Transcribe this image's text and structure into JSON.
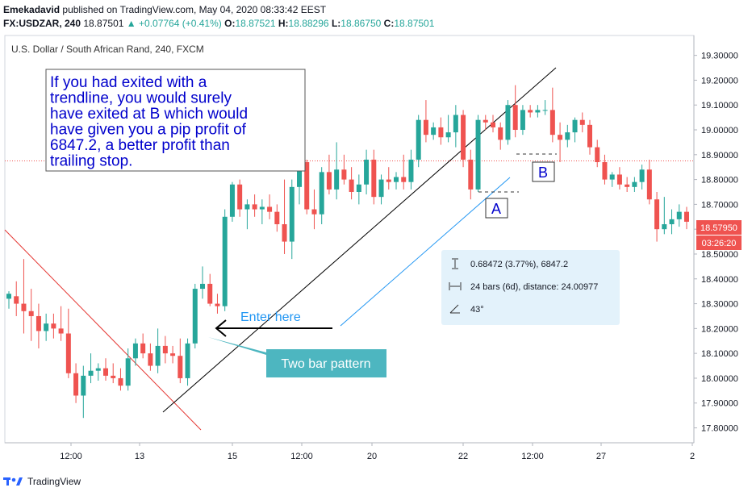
{
  "header": {
    "publisher": "Emekadavid",
    "published_text": "published on TradingView.com, May 04, 2020 08:33:42 EEST",
    "symbol": "FX:USDZAR, 240",
    "last": "18.87501",
    "change": "+0.07764 (+0.41%)",
    "open_label": "O:",
    "open": "18.87521",
    "high_label": "H:",
    "high": "18.88296",
    "low_label": "L:",
    "low": "18.86750",
    "close_label": "C:",
    "close": "18.87501"
  },
  "footer": {
    "brand": "TradingView"
  },
  "colors": {
    "up": "#26a69a",
    "down": "#ef5350",
    "annotation_text": "#0000cc",
    "info_bg": "#e3f2fb",
    "callout": "#4db6c0",
    "price_tag": "#ef5350"
  },
  "chart_data": {
    "type": "candlestick",
    "title": "U.S. Dollar / South African Rand, 240, FXCM",
    "y_axis": {
      "ticks": [
        "19.30000",
        "19.20000",
        "19.10000",
        "19.00000",
        "18.90000",
        "18.80000",
        "18.70000",
        "18.60000",
        "18.50000",
        "18.40000",
        "18.30000",
        "18.20000",
        "18.10000",
        "18.00000",
        "17.90000",
        "17.80000"
      ],
      "range": [
        17.74,
        19.38
      ]
    },
    "x_axis": {
      "ticks": [
        "12:00",
        "13",
        "15",
        "12:00",
        "20",
        "22",
        "12:00",
        "27",
        "2"
      ]
    },
    "price_tag": "18.57950",
    "countdown": "03:26:20",
    "current_price_line": 18.875,
    "candles": [
      {
        "o": 18.32,
        "h": 18.35,
        "l": 18.28,
        "c": 18.34
      },
      {
        "o": 18.33,
        "h": 18.39,
        "l": 18.25,
        "c": 18.3
      },
      {
        "o": 18.3,
        "h": 18.48,
        "l": 18.18,
        "c": 18.27
      },
      {
        "o": 18.27,
        "h": 18.36,
        "l": 18.15,
        "c": 18.25
      },
      {
        "o": 18.25,
        "h": 18.3,
        "l": 18.12,
        "c": 18.19
      },
      {
        "o": 18.19,
        "h": 18.26,
        "l": 18.15,
        "c": 18.22
      },
      {
        "o": 18.22,
        "h": 18.26,
        "l": 18.16,
        "c": 18.2
      },
      {
        "o": 18.2,
        "h": 18.29,
        "l": 18.15,
        "c": 18.18
      },
      {
        "o": 18.18,
        "h": 18.28,
        "l": 18.0,
        "c": 18.02
      },
      {
        "o": 18.02,
        "h": 18.06,
        "l": 17.9,
        "c": 17.93
      },
      {
        "o": 17.93,
        "h": 18.05,
        "l": 17.84,
        "c": 18.01
      },
      {
        "o": 18.01,
        "h": 18.1,
        "l": 17.98,
        "c": 18.03
      },
      {
        "o": 18.03,
        "h": 18.06,
        "l": 17.99,
        "c": 18.04
      },
      {
        "o": 18.04,
        "h": 18.08,
        "l": 17.99,
        "c": 18.01
      },
      {
        "o": 18.01,
        "h": 18.06,
        "l": 17.98,
        "c": 18.0
      },
      {
        "o": 18.0,
        "h": 18.04,
        "l": 17.95,
        "c": 17.97
      },
      {
        "o": 17.97,
        "h": 18.12,
        "l": 17.95,
        "c": 18.08
      },
      {
        "o": 18.08,
        "h": 18.16,
        "l": 18.05,
        "c": 18.14
      },
      {
        "o": 18.14,
        "h": 18.18,
        "l": 18.08,
        "c": 18.1
      },
      {
        "o": 18.1,
        "h": 18.14,
        "l": 18.03,
        "c": 18.05
      },
      {
        "o": 18.05,
        "h": 18.2,
        "l": 18.02,
        "c": 18.13
      },
      {
        "o": 18.13,
        "h": 18.17,
        "l": 18.06,
        "c": 18.1
      },
      {
        "o": 18.1,
        "h": 18.13,
        "l": 18.06,
        "c": 18.09
      },
      {
        "o": 18.09,
        "h": 18.16,
        "l": 17.98,
        "c": 18.0
      },
      {
        "o": 18.0,
        "h": 18.16,
        "l": 17.97,
        "c": 18.14
      },
      {
        "o": 18.14,
        "h": 18.38,
        "l": 18.12,
        "c": 18.36
      },
      {
        "o": 18.36,
        "h": 18.45,
        "l": 18.32,
        "c": 18.38
      },
      {
        "o": 18.38,
        "h": 18.42,
        "l": 18.29,
        "c": 18.3
      },
      {
        "o": 18.3,
        "h": 18.34,
        "l": 18.26,
        "c": 18.29
      },
      {
        "o": 18.29,
        "h": 18.68,
        "l": 18.27,
        "c": 18.65
      },
      {
        "o": 18.65,
        "h": 18.79,
        "l": 18.63,
        "c": 18.78
      },
      {
        "o": 18.78,
        "h": 18.8,
        "l": 18.65,
        "c": 18.68
      },
      {
        "o": 18.68,
        "h": 18.72,
        "l": 18.6,
        "c": 18.7
      },
      {
        "o": 18.7,
        "h": 18.74,
        "l": 18.65,
        "c": 18.68
      },
      {
        "o": 18.68,
        "h": 18.72,
        "l": 18.62,
        "c": 18.69
      },
      {
        "o": 18.69,
        "h": 18.74,
        "l": 18.64,
        "c": 18.67
      },
      {
        "o": 18.67,
        "h": 18.7,
        "l": 18.59,
        "c": 18.62
      },
      {
        "o": 18.62,
        "h": 18.8,
        "l": 18.5,
        "c": 18.55
      },
      {
        "o": 18.55,
        "h": 18.8,
        "l": 18.48,
        "c": 18.77
      },
      {
        "o": 18.77,
        "h": 18.9,
        "l": 18.7,
        "c": 18.87
      },
      {
        "o": 18.87,
        "h": 18.88,
        "l": 18.66,
        "c": 18.68
      },
      {
        "o": 18.68,
        "h": 18.76,
        "l": 18.6,
        "c": 18.66
      },
      {
        "o": 18.66,
        "h": 18.85,
        "l": 18.62,
        "c": 18.83
      },
      {
        "o": 18.83,
        "h": 18.9,
        "l": 18.74,
        "c": 18.76
      },
      {
        "o": 18.76,
        "h": 18.95,
        "l": 18.72,
        "c": 18.84
      },
      {
        "o": 18.84,
        "h": 18.9,
        "l": 18.78,
        "c": 18.8
      },
      {
        "o": 18.8,
        "h": 18.85,
        "l": 18.72,
        "c": 18.75
      },
      {
        "o": 18.75,
        "h": 18.82,
        "l": 18.7,
        "c": 18.78
      },
      {
        "o": 18.78,
        "h": 18.92,
        "l": 18.74,
        "c": 18.88
      },
      {
        "o": 18.88,
        "h": 18.92,
        "l": 18.7,
        "c": 18.73
      },
      {
        "o": 18.73,
        "h": 18.82,
        "l": 18.7,
        "c": 18.8
      },
      {
        "o": 18.8,
        "h": 18.85,
        "l": 18.76,
        "c": 18.79
      },
      {
        "o": 18.79,
        "h": 18.83,
        "l": 18.76,
        "c": 18.81
      },
      {
        "o": 18.81,
        "h": 18.9,
        "l": 18.76,
        "c": 18.79
      },
      {
        "o": 18.79,
        "h": 18.92,
        "l": 18.76,
        "c": 18.88
      },
      {
        "o": 18.88,
        "h": 19.06,
        "l": 18.85,
        "c": 19.04
      },
      {
        "o": 19.04,
        "h": 19.12,
        "l": 18.95,
        "c": 18.98
      },
      {
        "o": 18.98,
        "h": 19.03,
        "l": 18.96,
        "c": 19.01
      },
      {
        "o": 19.01,
        "h": 19.05,
        "l": 18.94,
        "c": 18.97
      },
      {
        "o": 18.97,
        "h": 19.06,
        "l": 18.95,
        "c": 18.99
      },
      {
        "o": 18.99,
        "h": 19.1,
        "l": 18.93,
        "c": 19.06
      },
      {
        "o": 19.06,
        "h": 19.08,
        "l": 18.85,
        "c": 18.88
      },
      {
        "o": 18.88,
        "h": 18.92,
        "l": 18.72,
        "c": 18.76
      },
      {
        "o": 18.76,
        "h": 19.06,
        "l": 18.75,
        "c": 19.04
      },
      {
        "o": 19.04,
        "h": 19.06,
        "l": 19.0,
        "c": 19.03
      },
      {
        "o": 19.03,
        "h": 19.06,
        "l": 18.99,
        "c": 19.01
      },
      {
        "o": 19.01,
        "h": 19.03,
        "l": 18.92,
        "c": 18.96
      },
      {
        "o": 18.96,
        "h": 19.12,
        "l": 18.94,
        "c": 19.1
      },
      {
        "o": 19.1,
        "h": 19.18,
        "l": 18.97,
        "c": 19.0
      },
      {
        "o": 19.0,
        "h": 19.1,
        "l": 18.98,
        "c": 19.08
      },
      {
        "o": 19.08,
        "h": 19.1,
        "l": 19.05,
        "c": 19.07
      },
      {
        "o": 19.07,
        "h": 19.1,
        "l": 19.05,
        "c": 19.08
      },
      {
        "o": 19.08,
        "h": 19.12,
        "l": 19.06,
        "c": 19.08
      },
      {
        "o": 19.08,
        "h": 19.17,
        "l": 18.95,
        "c": 18.98
      },
      {
        "o": 18.98,
        "h": 19.03,
        "l": 18.87,
        "c": 18.96
      },
      {
        "o": 18.96,
        "h": 19.02,
        "l": 18.93,
        "c": 18.99
      },
      {
        "o": 18.99,
        "h": 19.05,
        "l": 18.95,
        "c": 19.04
      },
      {
        "o": 19.04,
        "h": 19.07,
        "l": 18.99,
        "c": 19.02
      },
      {
        "o": 19.02,
        "h": 19.04,
        "l": 18.9,
        "c": 18.93
      },
      {
        "o": 18.93,
        "h": 18.96,
        "l": 18.85,
        "c": 18.87
      },
      {
        "o": 18.87,
        "h": 18.9,
        "l": 18.78,
        "c": 18.8
      },
      {
        "o": 18.8,
        "h": 18.83,
        "l": 18.77,
        "c": 18.82
      },
      {
        "o": 18.82,
        "h": 18.85,
        "l": 18.76,
        "c": 18.78
      },
      {
        "o": 18.78,
        "h": 18.81,
        "l": 18.75,
        "c": 18.77
      },
      {
        "o": 18.77,
        "h": 18.81,
        "l": 18.75,
        "c": 18.79
      },
      {
        "o": 18.79,
        "h": 18.86,
        "l": 18.76,
        "c": 18.84
      },
      {
        "o": 18.84,
        "h": 18.88,
        "l": 18.7,
        "c": 18.72
      },
      {
        "o": 18.72,
        "h": 18.75,
        "l": 18.55,
        "c": 18.6
      },
      {
        "o": 18.6,
        "h": 18.73,
        "l": 18.58,
        "c": 18.62
      },
      {
        "o": 18.62,
        "h": 18.68,
        "l": 18.58,
        "c": 18.64
      },
      {
        "o": 18.64,
        "h": 18.7,
        "l": 18.61,
        "c": 18.67
      },
      {
        "o": 18.67,
        "h": 18.69,
        "l": 18.6,
        "c": 18.63
      }
    ],
    "annotations": {
      "note_lines": [
        "If you had exited with a",
        "trendline, you would surely",
        "have exited at B which would",
        "have given you a pip profit of",
        "6847.2, a better profit than",
        "trailing stop."
      ],
      "label_a": "A",
      "label_b": "B",
      "enter_here": "Enter here",
      "two_bar_pattern": "Two bar pattern",
      "measure_price": "0.68472 (3.77%), 6847.2",
      "measure_bars": "24 bars (6d), distance: 24.00977",
      "measure_angle": "43°"
    }
  }
}
